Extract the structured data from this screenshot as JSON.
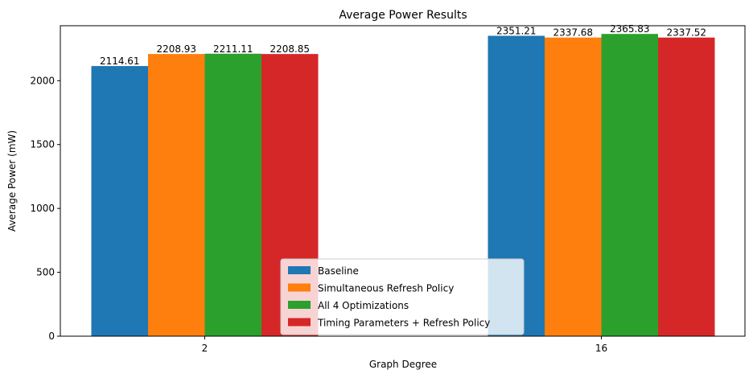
{
  "chart_data": {
    "type": "bar",
    "title": "Average Power Results",
    "xlabel": "Graph Degree",
    "ylabel": "Average Power (mW)",
    "categories": [
      "2",
      "16"
    ],
    "ylim": [
      0,
      2430
    ],
    "yticks": [
      0,
      500,
      1000,
      1500,
      2000
    ],
    "grid": false,
    "legend_position": "lower-center",
    "series": [
      {
        "name": "Baseline",
        "color": "#1f77b4",
        "values": [
          2114.61,
          2351.21
        ],
        "labels": [
          "2114.61",
          "2351.21"
        ]
      },
      {
        "name": "Simultaneous Refresh Policy",
        "color": "#ff7f0e",
        "values": [
          2208.93,
          2337.68
        ],
        "labels": [
          "2208.93",
          "2337.68"
        ]
      },
      {
        "name": "All 4 Optimizations",
        "color": "#2ca02c",
        "values": [
          2211.11,
          2365.83
        ],
        "labels": [
          "2211.11",
          "2365.83"
        ]
      },
      {
        "name": "Timing Parameters + Refresh Policy",
        "color": "#d62728",
        "values": [
          2208.85,
          2337.52
        ],
        "labels": [
          "2208.85",
          "2337.52"
        ]
      }
    ]
  }
}
